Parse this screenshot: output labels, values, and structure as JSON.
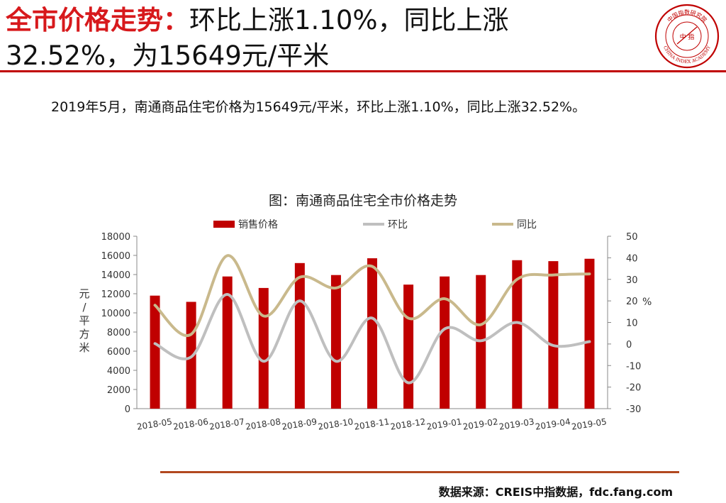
{
  "header": {
    "title_highlight": "全市价格走势：",
    "title_rest_line1": "环比上涨1.10%，同比上涨",
    "title_line2": "32.52%，为15649元/平米",
    "logo_text_top": "中国指数研究院",
    "logo_text_bottom": "CHINA INDEX ACADEMY",
    "logo_center": "中 指"
  },
  "summary": "2019年5月，南通商品住宅价格为15649元/平米，环比上涨1.10%，同比上涨32.52%。",
  "footer": {
    "source": "数据来源：CREIS中指数据，fdc.fang.com"
  },
  "colors": {
    "accent": "#c00000",
    "bar": "#c00000",
    "mom_line": "#bfbfbf",
    "yoy_line": "#c9b98c",
    "rule_bottom": "#b2481f"
  },
  "chart_data": {
    "type": "bar",
    "title": "图：南通商品住宅全市价格走势",
    "ylabel": "元/平方米",
    "y2label": "%",
    "categories": [
      "2018-05",
      "2018-06",
      "2018-07",
      "2018-08",
      "2018-09",
      "2018-10",
      "2018-11",
      "2018-12",
      "2019-01",
      "2019-02",
      "2019-03",
      "2019-04",
      "2019-05"
    ],
    "ylim": [
      0,
      18000
    ],
    "yticks": [
      0,
      2000,
      4000,
      6000,
      8000,
      10000,
      12000,
      14000,
      16000,
      18000
    ],
    "y2lim": [
      -30,
      50
    ],
    "y2ticks": [
      -30,
      -20,
      -10,
      0,
      10,
      20,
      30,
      40,
      50
    ],
    "legend_position": "top",
    "grid": false,
    "series": [
      {
        "name": "销售价格",
        "kind": "bar",
        "axis": "left",
        "values": [
          11800,
          11150,
          13800,
          12600,
          15200,
          13950,
          15700,
          12950,
          13800,
          13950,
          15500,
          15400,
          15649
        ]
      },
      {
        "name": "环比",
        "kind": "line",
        "axis": "right",
        "values": [
          0.2,
          -6.0,
          23.0,
          -8.0,
          20.0,
          -8.0,
          12.0,
          -18.0,
          7.0,
          1.5,
          10.0,
          -0.7,
          1.1
        ]
      },
      {
        "name": "同比",
        "kind": "line",
        "axis": "right",
        "values": [
          18.0,
          4.5,
          41.0,
          13.0,
          31.0,
          26.0,
          36.0,
          12.0,
          21.0,
          9.0,
          30.0,
          32.0,
          32.52
        ]
      }
    ]
  }
}
